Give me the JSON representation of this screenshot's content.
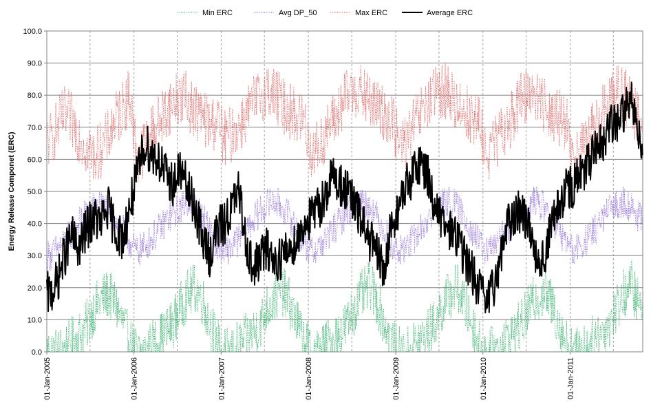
{
  "chart_data": {
    "type": "line",
    "title": "",
    "xlabel": "",
    "ylabel": "Energy Release Componet (ERC)",
    "ylim": [
      0,
      100
    ],
    "y_ticks": [
      "0.0",
      "10.0",
      "20.0",
      "30.0",
      "40.0",
      "50.0",
      "60.0",
      "70.0",
      "80.0",
      "90.0",
      "100.0"
    ],
    "x_ticks": [
      "01-Jan-2005",
      "01-Jan-2006",
      "01-Jan-2007",
      "01-Jan-2008",
      "01-Jan-2009",
      "01-Jan-2010",
      "01-Jan-2011"
    ],
    "x_range": [
      "2005-01-01",
      "2011-11-01"
    ],
    "grid": {
      "horizontal": true,
      "vertical": "dashed at Jan-1 and Jul-1"
    },
    "legend_position": "top",
    "x_sampling": "monthly, starting 2005-01",
    "series": [
      {
        "name": "Min ERC",
        "color": "#3cb371",
        "style": "dotted",
        "values": [
          0,
          0,
          1,
          3,
          5,
          8,
          13,
          16,
          18,
          15,
          9,
          3,
          0,
          0,
          2,
          4,
          6,
          9,
          14,
          18,
          20,
          16,
          9,
          3,
          0,
          0,
          2,
          4,
          6,
          9,
          14,
          17,
          19,
          15,
          9,
          3,
          0,
          0,
          2,
          4,
          6,
          9,
          14,
          18,
          21,
          16,
          9,
          3,
          0,
          0,
          2,
          4,
          6,
          9,
          14,
          18,
          20,
          15,
          9,
          3,
          0,
          0,
          2,
          4,
          6,
          9,
          14,
          17,
          19,
          15,
          9,
          3,
          0,
          0,
          2,
          4,
          6,
          9,
          14,
          18,
          21,
          15,
          8
        ]
      },
      {
        "name": "Avg DP_50",
        "color": "#9370db",
        "style": "dotted",
        "values": [
          30,
          32,
          34,
          37,
          40,
          43,
          45,
          46,
          44,
          41,
          38,
          34,
          31,
          33,
          35,
          38,
          41,
          43,
          45,
          47,
          45,
          42,
          38,
          34,
          31,
          33,
          35,
          38,
          41,
          44,
          46,
          47,
          45,
          42,
          38,
          34,
          31,
          33,
          35,
          38,
          41,
          44,
          46,
          47,
          45,
          42,
          38,
          34,
          31,
          33,
          35,
          38,
          41,
          44,
          46,
          47,
          45,
          42,
          38,
          34,
          31,
          33,
          35,
          38,
          41,
          44,
          46,
          47,
          45,
          42,
          38,
          34,
          31,
          33,
          35,
          38,
          41,
          44,
          46,
          47,
          45,
          42,
          39
        ]
      },
      {
        "name": "Max ERC",
        "color": "#e06666",
        "style": "dotted",
        "values": [
          66,
          70,
          74,
          72,
          68,
          64,
          61,
          63,
          67,
          72,
          76,
          80,
          60,
          64,
          68,
          72,
          75,
          78,
          80,
          78,
          75,
          73,
          71,
          72,
          66,
          68,
          70,
          74,
          77,
          80,
          82,
          80,
          77,
          75,
          73,
          72,
          62,
          64,
          68,
          72,
          76,
          80,
          82,
          80,
          78,
          76,
          74,
          73,
          64,
          66,
          70,
          74,
          77,
          80,
          82,
          80,
          77,
          75,
          73,
          72,
          62,
          64,
          67,
          71,
          75,
          79,
          82,
          80,
          77,
          75,
          73,
          72,
          58,
          62,
          66,
          70,
          74,
          78,
          82,
          80,
          76,
          72,
          68
        ]
      },
      {
        "name": "Average ERC",
        "color": "#000000",
        "style": "solid",
        "values": [
          18,
          22,
          30,
          36,
          32,
          38,
          42,
          40,
          45,
          38,
          35,
          45,
          55,
          65,
          62,
          60,
          55,
          52,
          57,
          50,
          45,
          35,
          30,
          38,
          40,
          45,
          50,
          35,
          25,
          30,
          32,
          28,
          30,
          32,
          35,
          40,
          42,
          45,
          50,
          55,
          52,
          50,
          45,
          40,
          35,
          30,
          25,
          40,
          45,
          52,
          55,
          60,
          55,
          45,
          40,
          38,
          36,
          30,
          25,
          20,
          15,
          20,
          30,
          40,
          42,
          45,
          38,
          30,
          28,
          40,
          45,
          50,
          52,
          55,
          58,
          62,
          65,
          70,
          72,
          75,
          78,
          70,
          60
        ]
      }
    ]
  }
}
